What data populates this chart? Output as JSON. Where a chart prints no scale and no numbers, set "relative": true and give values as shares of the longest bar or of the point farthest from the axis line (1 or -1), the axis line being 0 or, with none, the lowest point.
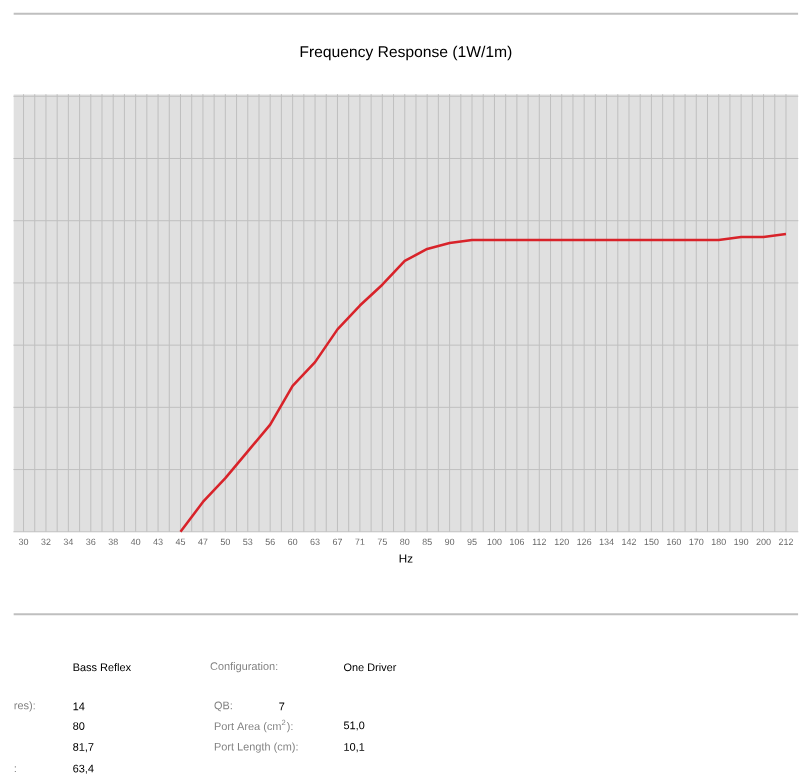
{
  "chart_data": {
    "type": "line",
    "title": "Frequency Response (1W/1m)",
    "xlabel": "Hz",
    "relative": true,
    "grid": true,
    "categories": [
      "30",
      "32",
      "34",
      "36",
      "38",
      "40",
      "43",
      "45",
      "47",
      "50",
      "53",
      "56",
      "60",
      "63",
      "67",
      "71",
      "75",
      "80",
      "85",
      "90",
      "95",
      "100",
      "106",
      "112",
      "120",
      "126",
      "134",
      "142",
      "150",
      "160",
      "170",
      "180",
      "190",
      "200",
      "212"
    ],
    "series": [
      {
        "color": "#d8232a",
        "values": [
          null,
          null,
          null,
          null,
          null,
          null,
          null,
          0,
          0.1,
          0.18,
          0.27,
          0.36,
          0.49,
          0.57,
          0.68,
          0.76,
          0.83,
          0.91,
          0.95,
          0.97,
          0.98,
          0.98,
          0.98,
          0.98,
          0.98,
          0.98,
          0.98,
          0.98,
          0.98,
          0.98,
          0.98,
          0.98,
          0.99,
          0.99,
          1.0
        ]
      }
    ],
    "annotations": [
      "Bass Reflex",
      "Configuration:",
      "One Driver",
      "res):",
      "14",
      "80",
      "81,7",
      ":",
      "63,4",
      "QB:",
      "7",
      "Port Area (cm$^{2}$):",
      "51,0",
      "Port Length (cm):",
      "10,1"
    ]
  }
}
